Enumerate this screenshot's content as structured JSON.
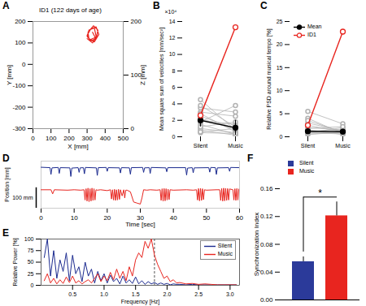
{
  "chart_data": [
    {
      "type": "line",
      "title": "A",
      "subtitle": "ID1 (122 days of age)",
      "x_label": "X [mm]",
      "y_label": "Y [mm]",
      "y2_label": "Z [mm]",
      "xlim": [
        0,
        500
      ],
      "xticks": [
        0,
        100,
        200,
        300,
        400,
        500
      ],
      "ylim": [
        -300,
        200
      ],
      "yticks": [
        -300,
        -200,
        -100,
        0,
        100,
        200
      ],
      "y2lim": [
        0,
        200
      ],
      "y2ticks": [
        0,
        100,
        200
      ],
      "series": [
        {
          "color": "#e8251f",
          "x": [
            300,
            330,
            350,
            340,
            310,
            300,
            320,
            350,
            360,
            335,
            305,
            310,
            340,
            365,
            350,
            320,
            300,
            315,
            345,
            330
          ],
          "values": [
            120,
            100,
            130,
            170,
            160,
            130,
            110,
            120,
            160,
            180,
            150,
            120,
            105,
            140,
            175,
            165,
            135,
            115,
            125,
            150
          ]
        }
      ]
    },
    {
      "type": "line",
      "title": "B",
      "y_label": "Mean square sum of velocities [mm/sec²]",
      "annotation": "×10⁴",
      "categories": [
        "Silent",
        "Music"
      ],
      "ylim": [
        0,
        14
      ],
      "yticks": [
        0,
        2,
        4,
        6,
        8,
        10,
        12,
        14
      ],
      "individuals": {
        "color": "#b3b3b3",
        "marker": "open_circle",
        "values": [
          [
            1.0,
            0.5
          ],
          [
            2.5,
            1.0
          ],
          [
            3.5,
            3.0
          ],
          [
            1.5,
            0.3
          ],
          [
            2.0,
            1.5
          ],
          [
            4.5,
            0.8
          ],
          [
            3.0,
            2.5
          ],
          [
            0.8,
            0.2
          ],
          [
            1.2,
            1.8
          ],
          [
            2.8,
            0.6
          ],
          [
            0.5,
            0.4
          ],
          [
            3.8,
            1.2
          ],
          [
            1.8,
            3.8
          ],
          [
            2.2,
            0.9
          ],
          [
            0.6,
            1.0
          ]
        ]
      },
      "series": [
        {
          "color": "#000000",
          "marker": "filled_circle",
          "values": [
            2.0,
            1.1
          ],
          "errors": [
            0.8,
            0.9
          ]
        },
        {
          "color": "#e8251f",
          "marker": "open_circle",
          "values": [
            2.6,
            13.3
          ]
        }
      ]
    },
    {
      "type": "line",
      "title": "C",
      "y_label": "Relative PSD around musical tempo [%]",
      "categories": [
        "Silent",
        "Music"
      ],
      "ylim": [
        0,
        25
      ],
      "yticks": [
        0,
        5,
        10,
        15,
        20,
        25
      ],
      "legend": "upper left",
      "individuals": {
        "color": "#b3b3b3",
        "marker": "open_circle",
        "values": [
          [
            1.0,
            0.8
          ],
          [
            2.0,
            1.5
          ],
          [
            0.5,
            1.0
          ],
          [
            3.0,
            1.2
          ],
          [
            5.5,
            2.8
          ],
          [
            1.5,
            0.5
          ],
          [
            0.8,
            2.0
          ],
          [
            2.5,
            1.0
          ],
          [
            1.2,
            1.5
          ],
          [
            4.0,
            0.7
          ],
          [
            0.6,
            0.9
          ],
          [
            1.8,
            2.2
          ],
          [
            3.5,
            1.0
          ],
          [
            0.9,
            0.6
          ]
        ]
      },
      "series": [
        {
          "name": "Mean",
          "color": "#000000",
          "marker": "filled_circle",
          "values": [
            1.2,
            1.1
          ],
          "errors": [
            0.4,
            0.3
          ]
        },
        {
          "name": "ID1",
          "color": "#e8251f",
          "marker": "open_circle",
          "values": [
            2.5,
            22.8
          ]
        }
      ]
    },
    {
      "type": "line",
      "title": "D",
      "x_label": "Time [sec]",
      "y_label": "Position [mm]",
      "xlim": [
        0,
        60
      ],
      "xticks": [
        0,
        10,
        20,
        30,
        40,
        50,
        60
      ],
      "ylim": [
        60,
        290
      ],
      "tick_labels": "x",
      "scale_bar": {
        "value": 100,
        "label": "100 mm"
      },
      "series": [
        {
          "color": "#1b2a8f",
          "x": [
            0,
            2.7,
            3,
            3.3,
            5.2,
            5.5,
            5.8,
            8.7,
            9,
            9.3,
            11.2,
            11.5,
            11.8,
            12.8,
            13.1,
            13.4,
            16.7,
            17,
            17.3,
            19.7,
            20,
            20.3,
            23.7,
            24,
            24.3,
            26.7,
            27,
            27.3,
            30.7,
            31,
            31.3,
            32.7,
            33,
            33.3,
            37.7,
            38,
            38.3,
            43.7,
            44,
            44.3,
            45.7,
            46,
            46.3,
            50.7,
            51,
            51.3,
            52.7,
            53,
            53.3,
            56.7,
            57,
            57.3,
            60
          ],
          "values": [
            260,
            258,
            225,
            257,
            259,
            230,
            258,
            257,
            215,
            256,
            258,
            235,
            257,
            258,
            228,
            259,
            257,
            220,
            258,
            259,
            240,
            258,
            257,
            232,
            258,
            257,
            226,
            258,
            259,
            235,
            257,
            258,
            230,
            259,
            257,
            238,
            258,
            258,
            222,
            256,
            258,
            233,
            257,
            258,
            236,
            259,
            258,
            225,
            257,
            258,
            240,
            259,
            258
          ]
        },
        {
          "color": "#e8251f",
          "x": [
            0,
            3,
            3.5,
            4,
            8,
            10,
            12,
            13,
            13.3,
            13.6,
            13.9,
            14.2,
            14.5,
            14.8,
            15.1,
            15.4,
            15.7,
            16,
            16.3,
            16.6,
            17,
            18,
            20,
            21,
            21.3,
            21.6,
            21.9,
            22.2,
            22.5,
            22.8,
            23.1,
            23.4,
            23.7,
            24,
            24.5,
            25,
            25.3,
            25.6,
            26,
            27,
            28,
            29,
            30,
            30.5,
            31,
            32,
            33,
            35,
            36,
            36.3,
            36.6,
            36.9,
            37.2,
            37.5,
            37.8,
            38.1,
            38.4,
            38.7,
            39,
            40,
            44,
            46,
            47,
            47.3,
            47.6,
            47.9,
            48.2,
            48.5,
            48.8,
            49.1,
            49.4,
            50,
            53,
            54,
            54.3,
            54.6,
            54.9,
            55.2,
            55.5,
            55.8,
            56.1,
            56.4,
            56.7,
            57,
            58,
            58.3,
            58.6,
            58.9,
            59.2,
            59.5,
            59.8,
            60
          ],
          "values": [
            150,
            150,
            130,
            150,
            148,
            150,
            148,
            150,
            100,
            155,
            95,
            158,
            92,
            155,
            95,
            158,
            98,
            155,
            100,
            150,
            148,
            150,
            146,
            150,
            105,
            150,
            100,
            152,
            98,
            150,
            100,
            152,
            103,
            150,
            120,
            150,
            110,
            148,
            148,
            140,
            90,
            85,
            80,
            110,
            150,
            148,
            150,
            148,
            150,
            98,
            155,
            95,
            156,
            96,
            155,
            100,
            153,
            102,
            150,
            148,
            150,
            148,
            150,
            100,
            156,
            96,
            157,
            98,
            155,
            102,
            150,
            148,
            150,
            150,
            98,
            156,
            95,
            158,
            96,
            157,
            98,
            156,
            100,
            154,
            150,
            100,
            155,
            98,
            156,
            100,
            154,
            150
          ]
        }
      ]
    },
    {
      "type": "line",
      "title": "E",
      "x_label": "Frequency [Hz]",
      "y_label": "Relative Power [%]",
      "xlim": [
        0,
        3.15
      ],
      "xticks": [
        0.5,
        {
          "value": 1,
          "label": "1.0"
        },
        1.5,
        {
          "value": 2,
          "label": "2.0"
        },
        2.5,
        {
          "value": 3,
          "label": "3.0"
        }
      ],
      "ylim": [
        0,
        100
      ],
      "yticks": [
        0,
        25,
        50,
        75,
        100
      ],
      "legend": "upper right",
      "reference_line": {
        "x": 1.8,
        "color": "#555555",
        "line_style": "dashed"
      },
      "x": [
        0.05,
        0.1,
        0.15,
        0.2,
        0.25,
        0.3,
        0.35,
        0.4,
        0.45,
        0.5,
        0.55,
        0.6,
        0.65,
        0.7,
        0.75,
        0.8,
        0.85,
        0.9,
        0.95,
        1.0,
        1.05,
        1.1,
        1.15,
        1.2,
        1.25,
        1.3,
        1.35,
        1.4,
        1.45,
        1.5,
        1.55,
        1.6,
        1.65,
        1.7,
        1.75,
        1.8,
        1.85,
        1.9,
        1.95,
        2.0,
        2.05,
        2.1,
        2.15,
        2.2,
        2.3,
        2.4,
        2.5,
        2.6,
        2.7,
        2.8,
        2.9,
        3.0,
        3.1
      ],
      "series": [
        {
          "name": "Silent",
          "color": "#1b2a8f",
          "values": [
            60,
            100,
            20,
            75,
            15,
            55,
            30,
            70,
            10,
            65,
            25,
            40,
            8,
            50,
            20,
            35,
            5,
            30,
            10,
            25,
            5,
            22,
            8,
            15,
            3,
            20,
            5,
            12,
            4,
            18,
            3,
            10,
            2,
            8,
            3,
            6,
            2,
            5,
            2,
            4,
            1,
            3,
            2,
            2,
            1,
            2,
            1,
            1,
            1,
            1,
            1,
            1,
            1
          ]
        },
        {
          "name": "Music",
          "color": "#e8251f",
          "values": [
            10,
            25,
            5,
            15,
            3,
            12,
            4,
            18,
            6,
            20,
            5,
            10,
            3,
            8,
            12,
            5,
            15,
            25,
            8,
            20,
            10,
            28,
            12,
            35,
            15,
            30,
            10,
            40,
            20,
            55,
            70,
            60,
            95,
            80,
            100,
            65,
            45,
            30,
            15,
            20,
            8,
            12,
            5,
            6,
            3,
            4,
            2,
            3,
            2,
            1,
            1,
            1,
            1
          ]
        }
      ]
    },
    {
      "type": "bar",
      "title": "F",
      "y_label": "Synchronization Index",
      "categories": [
        "Silent",
        "Music"
      ],
      "values": [
        0.055,
        0.121
      ],
      "errors": [
        0.007,
        0.02
      ],
      "colors": [
        "#2b3a9a",
        "#e8251f"
      ],
      "ylim": [
        0,
        0.16
      ],
      "yticks": [
        {
          "value": 0,
          "label": "0.00"
        },
        {
          "value": 0.04,
          "label": "0.04"
        },
        {
          "value": 0.08,
          "label": "0.08"
        },
        {
          "value": 0.12,
          "label": "0.12"
        },
        {
          "value": 0.16,
          "label": "0.16"
        }
      ],
      "tick_labels": "y",
      "legend": "upper left",
      "significance": {
        "label": "*",
        "between": [
          "Silent",
          "Music"
        ]
      }
    }
  ]
}
